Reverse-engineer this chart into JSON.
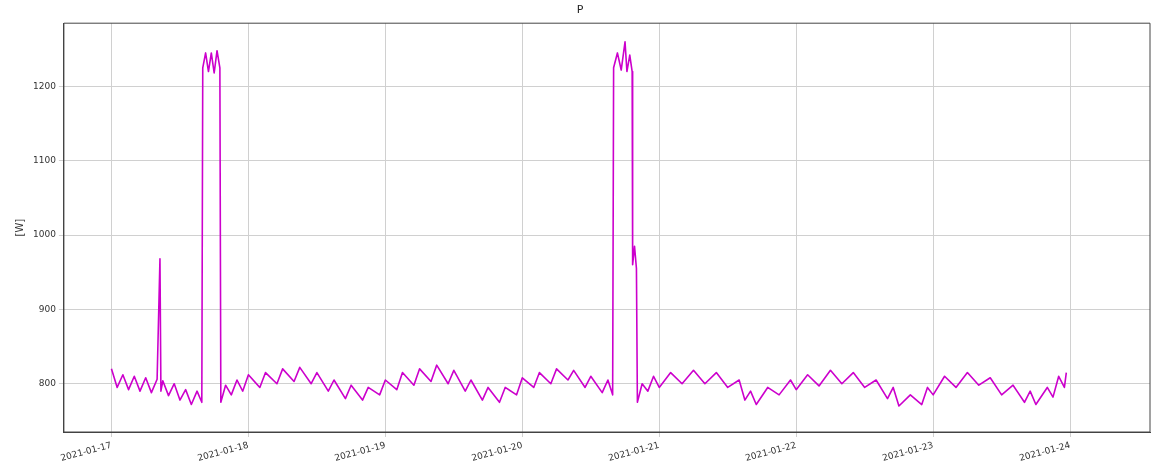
{
  "chart_data": {
    "type": "line",
    "title": "P",
    "ylabel": "[W]",
    "xlim": [
      "2021-01-16T15:40",
      "2021-01-24T14:00"
    ],
    "xticks": [
      "2021-01-17",
      "2021-01-18",
      "2021-01-19",
      "2021-01-20",
      "2021-01-21",
      "2021-01-22",
      "2021-01-23",
      "2021-01-24"
    ],
    "ylim": [
      735,
      1285
    ],
    "yticks": [
      800,
      900,
      1000,
      1100,
      1200
    ],
    "grid": true,
    "legend": false,
    "marker": "none",
    "line_style": "solid",
    "series": [
      {
        "color": "#cc00cc",
        "x": [
          "2021-01-17T00:00",
          "2021-01-17T01:00",
          "2021-01-17T02:00",
          "2021-01-17T03:00",
          "2021-01-17T04:00",
          "2021-01-17T05:00",
          "2021-01-17T06:00",
          "2021-01-17T07:00",
          "2021-01-17T08:00",
          "2021-01-17T08:30",
          "2021-01-17T08:40",
          "2021-01-17T09:00",
          "2021-01-17T10:00",
          "2021-01-17T11:00",
          "2021-01-17T12:00",
          "2021-01-17T13:00",
          "2021-01-17T14:00",
          "2021-01-17T15:00",
          "2021-01-17T15:50",
          "2021-01-17T16:00",
          "2021-01-17T16:30",
          "2021-01-17T17:00",
          "2021-01-17T17:30",
          "2021-01-17T18:00",
          "2021-01-17T18:30",
          "2021-01-17T19:00",
          "2021-01-17T19:10",
          "2021-01-17T20:00",
          "2021-01-17T21:00",
          "2021-01-17T22:00",
          "2021-01-17T23:00",
          "2021-01-18T00:00",
          "2021-01-18T02:00",
          "2021-01-18T03:00",
          "2021-01-18T05:00",
          "2021-01-18T06:00",
          "2021-01-18T08:00",
          "2021-01-18T09:00",
          "2021-01-18T11:00",
          "2021-01-18T12:00",
          "2021-01-18T14:00",
          "2021-01-18T15:00",
          "2021-01-18T17:00",
          "2021-01-18T18:00",
          "2021-01-18T20:00",
          "2021-01-18T21:00",
          "2021-01-18T23:00",
          "2021-01-19T00:00",
          "2021-01-19T02:00",
          "2021-01-19T03:00",
          "2021-01-19T05:00",
          "2021-01-19T06:00",
          "2021-01-19T08:00",
          "2021-01-19T09:00",
          "2021-01-19T11:00",
          "2021-01-19T12:00",
          "2021-01-19T14:00",
          "2021-01-19T15:00",
          "2021-01-19T17:00",
          "2021-01-19T18:00",
          "2021-01-19T20:00",
          "2021-01-19T21:00",
          "2021-01-19T23:00",
          "2021-01-20T00:00",
          "2021-01-20T02:00",
          "2021-01-20T03:00",
          "2021-01-20T05:00",
          "2021-01-20T06:00",
          "2021-01-20T08:00",
          "2021-01-20T09:00",
          "2021-01-20T11:00",
          "2021-01-20T12:00",
          "2021-01-20T14:00",
          "2021-01-20T15:00",
          "2021-01-20T15:50",
          "2021-01-20T16:00",
          "2021-01-20T16:40",
          "2021-01-20T17:20",
          "2021-01-20T18:00",
          "2021-01-20T18:20",
          "2021-01-20T18:50",
          "2021-01-20T19:15",
          "2021-01-20T19:20",
          "2021-01-20T19:40",
          "2021-01-20T20:00",
          "2021-01-20T20:10",
          "2021-01-20T21:00",
          "2021-01-20T22:00",
          "2021-01-20T23:00",
          "2021-01-21T00:00",
          "2021-01-21T02:00",
          "2021-01-21T04:00",
          "2021-01-21T06:00",
          "2021-01-21T08:00",
          "2021-01-21T10:00",
          "2021-01-21T12:00",
          "2021-01-21T14:00",
          "2021-01-21T15:00",
          "2021-01-21T16:00",
          "2021-01-21T17:00",
          "2021-01-21T19:00",
          "2021-01-21T21:00",
          "2021-01-21T23:00",
          "2021-01-22T00:00",
          "2021-01-22T02:00",
          "2021-01-22T04:00",
          "2021-01-22T06:00",
          "2021-01-22T08:00",
          "2021-01-22T10:00",
          "2021-01-22T12:00",
          "2021-01-22T14:00",
          "2021-01-22T16:00",
          "2021-01-22T17:00",
          "2021-01-22T18:00",
          "2021-01-22T20:00",
          "2021-01-22T22:00",
          "2021-01-22T23:00",
          "2021-01-23T00:00",
          "2021-01-23T02:00",
          "2021-01-23T04:00",
          "2021-01-23T06:00",
          "2021-01-23T08:00",
          "2021-01-23T10:00",
          "2021-01-23T12:00",
          "2021-01-23T14:00",
          "2021-01-23T16:00",
          "2021-01-23T17:00",
          "2021-01-23T18:00",
          "2021-01-23T20:00",
          "2021-01-23T21:00",
          "2021-01-23T22:00",
          "2021-01-23T23:00",
          "2021-01-23T23:20"
        ],
        "values": [
          820,
          795,
          812,
          792,
          810,
          790,
          808,
          788,
          806,
          968,
          790,
          804,
          784,
          800,
          778,
          792,
          772,
          790,
          775,
          1225,
          1245,
          1220,
          1245,
          1218,
          1248,
          1225,
          775,
          798,
          785,
          805,
          790,
          812,
          795,
          815,
          800,
          820,
          803,
          822,
          800,
          815,
          790,
          805,
          780,
          798,
          778,
          795,
          785,
          805,
          792,
          815,
          798,
          820,
          803,
          825,
          800,
          818,
          790,
          805,
          778,
          795,
          775,
          795,
          785,
          808,
          795,
          815,
          800,
          820,
          805,
          818,
          795,
          810,
          788,
          805,
          785,
          1225,
          1245,
          1222,
          1260,
          1220,
          1242,
          1220,
          960,
          985,
          955,
          775,
          800,
          790,
          810,
          795,
          815,
          800,
          818,
          800,
          815,
          795,
          805,
          778,
          790,
          772,
          795,
          785,
          805,
          792,
          812,
          797,
          818,
          800,
          815,
          795,
          805,
          780,
          795,
          770,
          785,
          772,
          795,
          785,
          810,
          795,
          815,
          798,
          808,
          785,
          798,
          775,
          790,
          772,
          795,
          782,
          810,
          795,
          815
        ]
      }
    ]
  }
}
